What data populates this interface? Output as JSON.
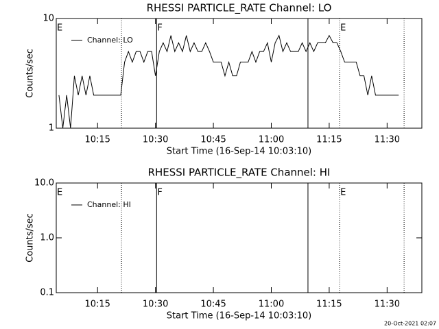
{
  "chart_data": [
    {
      "type": "line",
      "title": "RHESSI PARTICLE_RATE Channel: LO",
      "xlabel": "Start Time (16-Sep-14 10:03:10)",
      "ylabel": "Counts/sec",
      "log_y": true,
      "xlim": [
        4.3,
        99
      ],
      "ylim": [
        1,
        10
      ],
      "yticks": [
        1,
        10
      ],
      "xticks": [
        {
          "value": 15,
          "label": "10:15"
        },
        {
          "value": 30,
          "label": "10:30"
        },
        {
          "value": 45,
          "label": "10:45"
        },
        {
          "value": 60,
          "label": "11:00"
        },
        {
          "value": 75,
          "label": "11:15"
        },
        {
          "value": 90,
          "label": "11:30"
        }
      ],
      "x": [
        5,
        6,
        7,
        8,
        9,
        10,
        11,
        12,
        13,
        14,
        15,
        16,
        17,
        18,
        19,
        20,
        21,
        22,
        23,
        24,
        25,
        26,
        27,
        28,
        29,
        30,
        31,
        32,
        33,
        34,
        35,
        36,
        37,
        38,
        39,
        40,
        41,
        42,
        43,
        44,
        45,
        46,
        47,
        48,
        49,
        50,
        51,
        52,
        53,
        54,
        55,
        56,
        57,
        58,
        59,
        60,
        61,
        62,
        63,
        64,
        65,
        66,
        67,
        68,
        69,
        70,
        71,
        72,
        73,
        74,
        75,
        76,
        77,
        78,
        79,
        80,
        81,
        82,
        83,
        84,
        85,
        86,
        87,
        88,
        89,
        90,
        91,
        92,
        93
      ],
      "series": [
        {
          "name": "Channel: LO",
          "color": "#000000",
          "values": [
            2,
            1,
            2,
            1,
            3,
            2,
            3,
            2,
            3,
            2,
            2,
            2,
            2,
            2,
            2,
            2,
            2,
            4,
            5,
            4,
            5,
            5,
            4,
            5,
            5,
            3,
            5,
            6,
            5,
            7,
            5,
            6,
            5,
            7,
            5,
            6,
            5,
            5,
            6,
            5,
            4,
            4,
            4,
            3,
            4,
            3,
            3,
            4,
            4,
            4,
            5,
            4,
            5,
            5,
            6,
            4,
            6,
            7,
            5,
            6,
            5,
            5,
            5,
            6,
            5,
            6,
            5,
            6,
            6,
            6,
            7,
            6,
            6,
            5,
            4,
            4,
            4,
            4,
            3,
            3,
            2,
            3,
            2,
            2,
            2,
            2,
            2,
            2,
            2
          ]
        }
      ],
      "markers": [
        {
          "x": 4.3,
          "label": "E"
        },
        {
          "x": 21.2,
          "style": "dotted"
        },
        {
          "x": 30.3,
          "style": "solid",
          "label": "F"
        },
        {
          "x": 69.5,
          "style": "solid"
        },
        {
          "x": 77.7,
          "style": "dotted",
          "label": "E"
        },
        {
          "x": 94.4,
          "style": "dotted"
        }
      ]
    },
    {
      "type": "line",
      "title": "RHESSI PARTICLE_RATE Channel: HI",
      "xlabel": "Start Time (16-Sep-14 10:03:10)",
      "ylabel": "Counts/sec",
      "log_y": true,
      "xlim": [
        4.3,
        99
      ],
      "ylim": [
        0.1,
        10
      ],
      "yticks": [
        0.1,
        {
          "value": 1,
          "label": "1.0"
        },
        {
          "value": 10,
          "label": "10.0"
        }
      ],
      "xticks": [
        {
          "value": 15,
          "label": "10:15"
        },
        {
          "value": 30,
          "label": "10:30"
        },
        {
          "value": 45,
          "label": "10:45"
        },
        {
          "value": 60,
          "label": "11:00"
        },
        {
          "value": 75,
          "label": "11:15"
        },
        {
          "value": 90,
          "label": "11:30"
        }
      ],
      "x": [],
      "series": [
        {
          "name": "Channel: HI",
          "color": "#000000",
          "values": []
        }
      ],
      "markers": [
        {
          "x": 4.3,
          "label": "E"
        },
        {
          "x": 21.2,
          "style": "dotted"
        },
        {
          "x": 30.3,
          "style": "solid",
          "label": "F"
        },
        {
          "x": 69.5,
          "style": "solid"
        },
        {
          "x": 77.7,
          "style": "dotted",
          "label": "E"
        },
        {
          "x": 94.4,
          "style": "dotted"
        }
      ]
    }
  ],
  "footer": "20-Oct-2021 02:07"
}
